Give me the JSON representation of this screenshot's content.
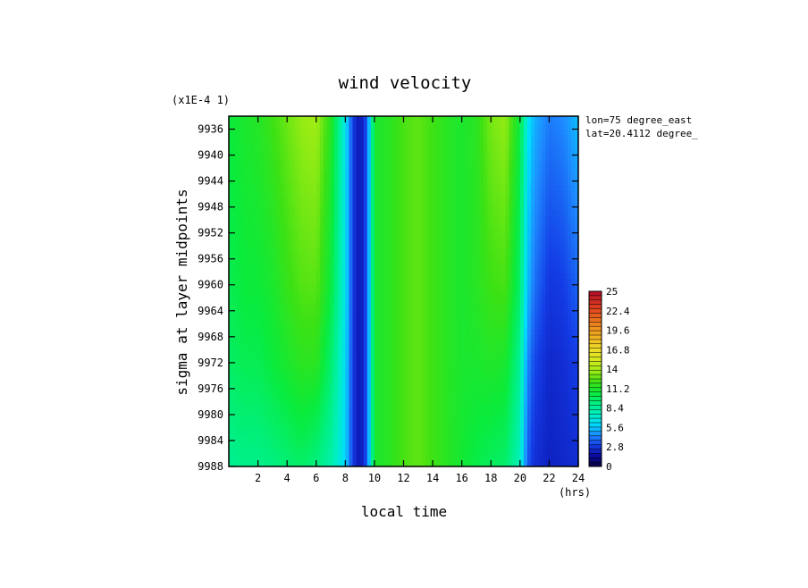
{
  "chart_data": {
    "type": "heatmap",
    "title": "wind velocity",
    "y_multiplier_label": "(x1E-4 1)",
    "xlabel": "local time",
    "x_unit": "(hrs)",
    "ylabel": "sigma at layer midpoints",
    "annotations": [
      "lon=75 degree_east",
      "lat=20.4112 degree_"
    ],
    "xlim": [
      0,
      24
    ],
    "ylim": [
      9988,
      9934
    ],
    "x_ticks": [
      2,
      4,
      6,
      8,
      10,
      12,
      14,
      16,
      18,
      20,
      22,
      24
    ],
    "y_ticks": [
      9936,
      9940,
      9944,
      9948,
      9952,
      9956,
      9960,
      9964,
      9968,
      9972,
      9976,
      9980,
      9984,
      9988
    ],
    "colorbar": {
      "min": 0,
      "max": 25,
      "labels": [
        "25",
        "22.4",
        "19.6",
        "16.8",
        "14",
        "11.2",
        "8.4",
        "5.6",
        "2.8",
        "0"
      ]
    },
    "x": [
      0,
      1,
      2,
      3,
      4,
      5,
      6,
      7,
      8,
      8.5,
      9,
      9.5,
      10,
      11,
      12,
      13,
      14,
      15,
      16,
      17,
      18,
      19,
      20,
      20.5,
      21,
      22,
      23,
      24
    ],
    "rows": [
      {
        "sigma": 9934,
        "values": [
          10.5,
          11.0,
          11.3,
          12.0,
          12.8,
          13.5,
          13.8,
          11.5,
          6.5,
          3.0,
          1.8,
          3.5,
          11.0,
          11.4,
          12.2,
          12.6,
          12.0,
          11.4,
          11.0,
          11.5,
          13.0,
          13.5,
          10.5,
          6.5,
          5.2,
          4.2,
          4.5,
          5.5
        ]
      },
      {
        "sigma": 9960,
        "values": [
          10.0,
          10.5,
          10.6,
          11.0,
          11.8,
          12.4,
          12.5,
          10.5,
          6.5,
          3.0,
          1.8,
          3.5,
          11.0,
          11.4,
          12.2,
          12.6,
          12.0,
          11.4,
          11.0,
          11.4,
          12.0,
          12.2,
          9.5,
          5.5,
          4.0,
          2.8,
          3.0,
          3.8
        ]
      },
      {
        "sigma": 9972,
        "values": [
          9.6,
          10.0,
          10.0,
          10.5,
          11.0,
          11.5,
          11.5,
          9.5,
          6.2,
          3.0,
          1.8,
          3.5,
          11.0,
          11.4,
          12.2,
          12.6,
          12.0,
          11.4,
          11.0,
          11.0,
          11.2,
          11.0,
          8.5,
          4.5,
          3.2,
          2.4,
          2.6,
          3.0
        ]
      },
      {
        "sigma": 9988,
        "values": [
          8.6,
          8.8,
          8.8,
          9.0,
          9.3,
          9.6,
          9.0,
          8.0,
          6.0,
          3.0,
          1.8,
          3.5,
          11.0,
          11.4,
          12.2,
          12.6,
          12.0,
          11.4,
          10.8,
          10.2,
          9.8,
          9.5,
          7.5,
          3.6,
          2.6,
          2.2,
          2.4,
          2.6
        ]
      }
    ]
  }
}
